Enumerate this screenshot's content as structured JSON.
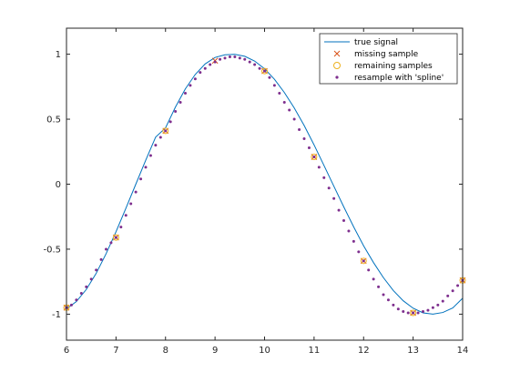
{
  "chart_data": {
    "type": "line",
    "title": "",
    "xlabel": "",
    "ylabel": "",
    "xlim": [
      6,
      14
    ],
    "ylim": [
      -1.2,
      1.2
    ],
    "grid": false,
    "legend_position": "top-right",
    "x_ticks": [
      6,
      7,
      8,
      9,
      10,
      11,
      12,
      13,
      14
    ],
    "y_ticks": [
      -1,
      -0.5,
      0,
      0.5,
      1
    ],
    "x_tick_labels": [
      "6",
      "7",
      "8",
      "9",
      "10",
      "11",
      "12",
      "13",
      "14"
    ],
    "y_tick_labels": [
      "-1",
      "-0.5",
      "0",
      "0.5",
      "1"
    ],
    "series": [
      {
        "name": "true signal",
        "kind": "line",
        "color": "#0072bd",
        "x": [
          6.0,
          6.2,
          6.4,
          6.6,
          6.8,
          7.0,
          7.2,
          7.4,
          7.6,
          7.8,
          8.0,
          8.2,
          8.4,
          8.6,
          8.8,
          9.0,
          9.2,
          9.4,
          9.6,
          9.8,
          10.0,
          10.2,
          10.4,
          10.6,
          10.8,
          11.0,
          11.2,
          11.4,
          11.6,
          11.8,
          12.0,
          12.2,
          12.4,
          12.6,
          12.8,
          13.0,
          13.2,
          13.4,
          13.6,
          13.8,
          14.0
        ],
        "y": [
          -0.959,
          -0.903,
          -0.81,
          -0.686,
          -0.535,
          -0.366,
          -0.185,
          0.0,
          0.184,
          0.362,
          0.433,
          0.593,
          0.733,
          0.844,
          0.925,
          0.975,
          0.995,
          0.999,
          0.984,
          0.947,
          0.888,
          0.807,
          0.705,
          0.586,
          0.451,
          0.302,
          0.144,
          -0.016,
          -0.175,
          -0.329,
          -0.474,
          -0.603,
          -0.719,
          -0.818,
          -0.897,
          -0.954,
          -0.99,
          -1.0,
          -0.987,
          -0.952,
          -0.877
        ]
      },
      {
        "name": "missing sample",
        "kind": "scatter",
        "marker": "x",
        "color": "#d95319",
        "x": [
          6,
          7,
          8,
          9,
          10,
          11,
          12,
          13,
          14
        ],
        "y": [
          -0.95,
          -0.41,
          0.41,
          0.95,
          0.87,
          0.21,
          -0.59,
          -0.99,
          -0.74
        ]
      },
      {
        "name": "remaining samples",
        "kind": "scatter",
        "marker": "o",
        "color": "#edb120",
        "x": [
          6,
          7,
          8,
          10,
          11,
          12,
          13,
          14
        ],
        "y": [
          -0.95,
          -0.41,
          0.41,
          0.87,
          0.21,
          -0.59,
          -0.99,
          -0.74
        ]
      },
      {
        "name": "resample with 'spline'",
        "kind": "scatter",
        "marker": ".",
        "color": "#7e2f8e",
        "x": [
          6.0,
          6.1,
          6.2,
          6.3,
          6.4,
          6.5,
          6.6,
          6.7,
          6.8,
          6.9,
          7.0,
          7.1,
          7.2,
          7.3,
          7.4,
          7.5,
          7.6,
          7.7,
          7.8,
          7.9,
          8.0,
          8.1,
          8.2,
          8.3,
          8.4,
          8.5,
          8.6,
          8.7,
          8.8,
          8.9,
          9.0,
          9.1,
          9.2,
          9.3,
          9.4,
          9.5,
          9.6,
          9.7,
          9.8,
          9.9,
          10.0,
          10.1,
          10.2,
          10.3,
          10.4,
          10.5,
          10.6,
          10.7,
          10.8,
          10.9,
          11.0,
          11.1,
          11.2,
          11.3,
          11.4,
          11.5,
          11.6,
          11.7,
          11.8,
          11.9,
          12.0,
          12.1,
          12.2,
          12.3,
          12.4,
          12.5,
          12.6,
          12.7,
          12.8,
          12.9,
          13.0,
          13.1,
          13.2,
          13.3,
          13.4,
          13.5,
          13.6,
          13.7,
          13.8,
          13.9,
          14.0
        ],
        "y": [
          -0.95,
          -0.93,
          -0.89,
          -0.84,
          -0.79,
          -0.73,
          -0.66,
          -0.58,
          -0.5,
          -0.45,
          -0.41,
          -0.33,
          -0.24,
          -0.15,
          -0.06,
          0.04,
          0.13,
          0.22,
          0.3,
          0.36,
          0.41,
          0.48,
          0.56,
          0.63,
          0.7,
          0.76,
          0.81,
          0.86,
          0.89,
          0.92,
          0.94,
          0.96,
          0.97,
          0.98,
          0.98,
          0.97,
          0.96,
          0.94,
          0.92,
          0.89,
          0.87,
          0.82,
          0.76,
          0.7,
          0.63,
          0.57,
          0.5,
          0.42,
          0.35,
          0.28,
          0.21,
          0.13,
          0.05,
          -0.03,
          -0.11,
          -0.2,
          -0.28,
          -0.36,
          -0.44,
          -0.52,
          -0.59,
          -0.66,
          -0.73,
          -0.79,
          -0.85,
          -0.89,
          -0.93,
          -0.96,
          -0.98,
          -0.99,
          -0.99,
          -0.99,
          -0.98,
          -0.97,
          -0.95,
          -0.93,
          -0.9,
          -0.86,
          -0.82,
          -0.78,
          -0.74
        ]
      }
    ]
  }
}
